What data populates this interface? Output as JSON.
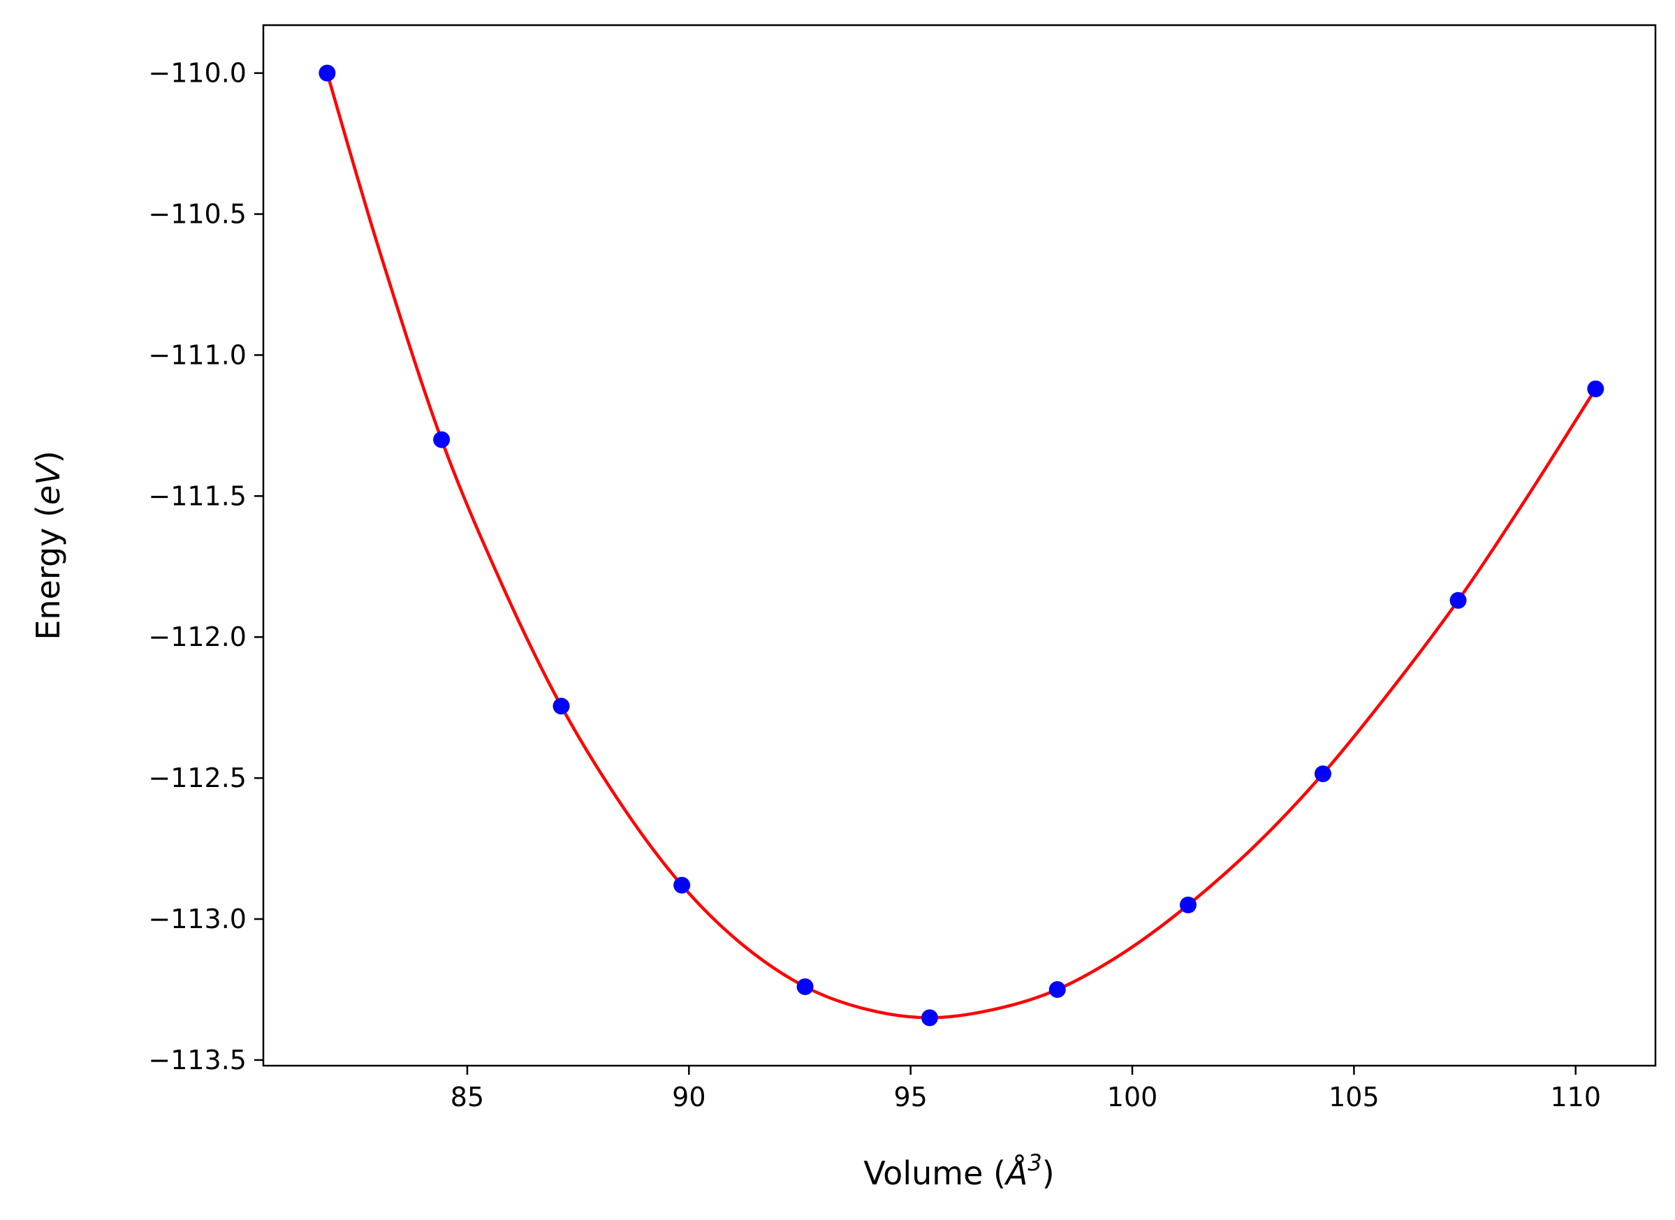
{
  "chart_data": {
    "type": "scatter",
    "title": "",
    "xlabel": {
      "prefix": "Volume (",
      "symbol": "Å",
      "sup": "3",
      "suffix": ")"
    },
    "ylabel": {
      "prefix": "Energy (",
      "symbol": "eV",
      "suffix": ")"
    },
    "xlim": [
      80.4,
      111.8
    ],
    "ylim": [
      -113.52,
      -109.83
    ],
    "x_ticks": [
      85,
      90,
      95,
      100,
      105,
      110
    ],
    "x_tick_labels": [
      "85",
      "90",
      "95",
      "100",
      "105",
      "110"
    ],
    "y_ticks": [
      -110.0,
      -110.5,
      -111.0,
      -111.5,
      -112.0,
      -112.5,
      -113.0,
      -113.5
    ],
    "y_tick_labels": [
      "−110.0",
      "−110.5",
      "−111.0",
      "−111.5",
      "−112.0",
      "−112.5",
      "−113.0",
      "−113.5"
    ],
    "grid": false,
    "legend": "none",
    "series": [
      {
        "kind": "points",
        "color": "#0000ff",
        "x": [
          81.84,
          84.42,
          87.12,
          89.84,
          92.62,
          95.43,
          98.31,
          101.26,
          104.3,
          107.35,
          110.45
        ],
        "y": [
          -110.0,
          -111.3,
          -112.245,
          -112.88,
          -113.24,
          -113.35,
          -113.25,
          -112.95,
          -112.485,
          -111.87,
          -111.12
        ]
      },
      {
        "kind": "fit-curve",
        "color": "#ff0000",
        "x": [
          81.84,
          83.0,
          84.42,
          85.8,
          87.12,
          88.5,
          89.84,
          91.2,
          92.62,
          94.0,
          95.43,
          96.9,
          98.31,
          99.8,
          101.26,
          102.8,
          104.3,
          105.8,
          107.35,
          108.9,
          110.45
        ],
        "y": [
          -110.0,
          -110.62,
          -111.3,
          -111.82,
          -112.245,
          -112.6,
          -112.88,
          -113.09,
          -113.24,
          -113.32,
          -113.35,
          -113.32,
          -113.25,
          -113.12,
          -112.95,
          -112.735,
          -112.485,
          -112.195,
          -111.87,
          -111.505,
          -111.12
        ]
      }
    ]
  }
}
